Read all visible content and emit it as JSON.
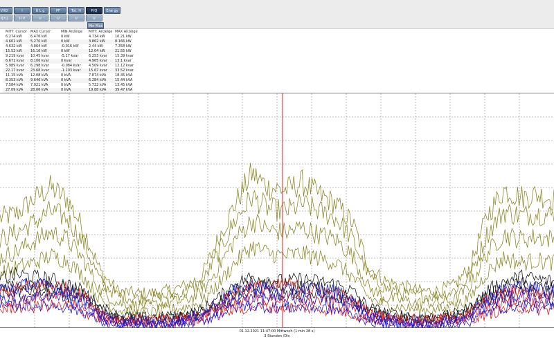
{
  "toolbar": {
    "row1": [
      "VHD",
      "I",
      "U L g",
      "PF",
      "Tot. H",
      "P/Q",
      "Ene gy"
    ],
    "row2": [
      "f[±]",
      "U V",
      "U",
      "U",
      "U",
      "U"
    ],
    "sub_button": "Min Max"
  },
  "table": {
    "headers": [
      "MITT. Cursor",
      "MAX Cursor",
      "MIN Anzeige",
      "MITT. Anzeige",
      "MAX Anzeige"
    ],
    "rows": [
      [
        "6.274 kW",
        "6.476 kW",
        "0 kW",
        "4.734 kW",
        "10.21 kW"
      ],
      [
        "4.601 kW",
        "5.270 kW",
        "0 kW",
        "3.862 kW",
        "8.166 kW"
      ],
      [
        "4.632 kW",
        "4.864 kW",
        "-0.016 kW",
        "2.44 kW",
        "7.358 kW"
      ],
      [
        "15.52 kW",
        "16.16 kW",
        "0 kW",
        "12.04 kW",
        "21.55 kW"
      ],
      [
        "9.219 kvar",
        "10.45 kvar",
        "-5.17 kvar",
        "6.253 kvar",
        "15.39 kvar"
      ],
      [
        "6.671 kvar",
        "8.106 kvar",
        "0 kvar",
        "4.965 kvar",
        "13.1 kvar"
      ],
      [
        "5.989 kvar",
        "6.298 kvar",
        "-0.084 kvar",
        "4.509 kvar",
        "12.12 kvar"
      ],
      [
        "22.17 kvar",
        "23.68 kvar",
        "-1.103 kvar",
        "15.67 kvar",
        "33.52 kvar"
      ],
      [
        "11.15 kVA",
        "12.08 kVA",
        "0 kVA",
        "7.874 kVA",
        "18.45 kVA"
      ],
      [
        "8.353 kVA",
        "9.646 kVA",
        "0 kVA",
        "6.284 kVA",
        "15.44 kVA"
      ],
      [
        "7.584 kVA",
        "7.921 kVA",
        "0 kVA",
        "5.722 kVA",
        "13.45 kVA"
      ],
      [
        "27.09 kVA",
        "28.66 kVA",
        "0 kVA",
        "19.88 kVA",
        "39.47 kVA"
      ]
    ]
  },
  "status": {
    "cursor_time": "01.12.2021 11:47:00 Mittwoch (1 min 28 s)",
    "zoom": "3 Stunden /Div"
  },
  "colors": {
    "olive": "#8c8a28",
    "black": "#1a1a1a",
    "red": "#e01818",
    "blue": "#1c1ce0",
    "cursor": "#e02020",
    "grid": "#888888",
    "active_button": "#1f3350"
  },
  "chart_data": {
    "type": "line",
    "title": "",
    "xlabel": "",
    "ylabel": "",
    "cursor_fraction": 0.51,
    "series": [
      {
        "color": "#8c8a28",
        "values": [
          0.47,
          0.49,
          0.55,
          0.6,
          0.55,
          0.42,
          0.24,
          0.16,
          0.15,
          0.15,
          0.16,
          0.18,
          0.22,
          0.38,
          0.53,
          0.66,
          0.6,
          0.59,
          0.62,
          0.57,
          0.53,
          0.45,
          0.26,
          0.2,
          0.18,
          0.16,
          0.16,
          0.18,
          0.26,
          0.48,
          0.59,
          0.56,
          0.57,
          0.55
        ]
      },
      {
        "color": "#8c8a28",
        "values": [
          0.38,
          0.41,
          0.45,
          0.5,
          0.47,
          0.36,
          0.2,
          0.14,
          0.13,
          0.13,
          0.14,
          0.15,
          0.19,
          0.32,
          0.46,
          0.56,
          0.51,
          0.5,
          0.53,
          0.5,
          0.47,
          0.38,
          0.22,
          0.17,
          0.15,
          0.14,
          0.14,
          0.16,
          0.22,
          0.4,
          0.5,
          0.48,
          0.49,
          0.48
        ]
      },
      {
        "color": "#8c8a28",
        "values": [
          0.3,
          0.33,
          0.37,
          0.41,
          0.38,
          0.29,
          0.16,
          0.11,
          0.1,
          0.1,
          0.11,
          0.12,
          0.15,
          0.26,
          0.38,
          0.46,
          0.42,
          0.41,
          0.43,
          0.4,
          0.38,
          0.31,
          0.17,
          0.13,
          0.12,
          0.11,
          0.11,
          0.12,
          0.18,
          0.32,
          0.4,
          0.38,
          0.39,
          0.38
        ]
      },
      {
        "color": "#8c8a28",
        "values": [
          0.24,
          0.26,
          0.28,
          0.31,
          0.29,
          0.22,
          0.12,
          0.08,
          0.07,
          0.07,
          0.08,
          0.09,
          0.11,
          0.19,
          0.28,
          0.35,
          0.32,
          0.31,
          0.32,
          0.3,
          0.28,
          0.22,
          0.13,
          0.1,
          0.09,
          0.08,
          0.08,
          0.09,
          0.13,
          0.24,
          0.3,
          0.28,
          0.29,
          0.28
        ]
      },
      {
        "color": "#1a1a1a",
        "values": [
          0.21,
          0.23,
          0.22,
          0.21,
          0.19,
          0.16,
          0.09,
          0.06,
          0.05,
          0.05,
          0.05,
          0.06,
          0.08,
          0.13,
          0.19,
          0.22,
          0.21,
          0.2,
          0.21,
          0.2,
          0.19,
          0.16,
          0.09,
          0.07,
          0.06,
          0.05,
          0.05,
          0.06,
          0.09,
          0.16,
          0.2,
          0.22,
          0.21,
          0.2
        ]
      },
      {
        "color": "#1a1a1a",
        "values": [
          0.18,
          0.19,
          0.19,
          0.18,
          0.17,
          0.14,
          0.08,
          0.05,
          0.04,
          0.04,
          0.05,
          0.05,
          0.07,
          0.11,
          0.16,
          0.19,
          0.18,
          0.17,
          0.18,
          0.17,
          0.16,
          0.13,
          0.08,
          0.06,
          0.05,
          0.04,
          0.04,
          0.05,
          0.08,
          0.14,
          0.17,
          0.19,
          0.18,
          0.17
        ]
      },
      {
        "color": "#1a1a1a",
        "values": [
          0.15,
          0.16,
          0.16,
          0.15,
          0.14,
          0.12,
          0.07,
          0.04,
          0.04,
          0.04,
          0.04,
          0.05,
          0.06,
          0.09,
          0.13,
          0.16,
          0.15,
          0.14,
          0.15,
          0.14,
          0.13,
          0.11,
          0.07,
          0.05,
          0.04,
          0.04,
          0.04,
          0.05,
          0.07,
          0.12,
          0.14,
          0.16,
          0.15,
          0.14
        ]
      },
      {
        "color": "#e01818",
        "values": [
          0.15,
          0.17,
          0.18,
          0.19,
          0.17,
          0.14,
          0.07,
          0.04,
          0.04,
          0.04,
          0.04,
          0.05,
          0.06,
          0.1,
          0.15,
          0.18,
          0.17,
          0.19,
          0.17,
          0.16,
          0.15,
          0.12,
          0.07,
          0.05,
          0.04,
          0.04,
          0.04,
          0.05,
          0.07,
          0.12,
          0.15,
          0.16,
          0.15,
          0.14
        ]
      },
      {
        "color": "#e01818",
        "values": [
          0.11,
          0.12,
          0.13,
          0.14,
          0.12,
          0.1,
          0.05,
          0.03,
          0.03,
          0.03,
          0.03,
          0.04,
          0.05,
          0.08,
          0.11,
          0.13,
          0.12,
          0.13,
          0.12,
          0.12,
          0.11,
          0.09,
          0.05,
          0.04,
          0.03,
          0.03,
          0.03,
          0.04,
          0.05,
          0.09,
          0.11,
          0.12,
          0.11,
          0.1
        ]
      },
      {
        "color": "#e01818",
        "values": [
          0.08,
          0.09,
          0.09,
          0.1,
          0.09,
          0.07,
          0.04,
          0.02,
          0.02,
          0.02,
          0.02,
          0.03,
          0.03,
          0.06,
          0.08,
          0.09,
          0.09,
          0.09,
          0.09,
          0.08,
          0.08,
          0.06,
          0.04,
          0.03,
          0.02,
          0.02,
          0.02,
          0.03,
          0.04,
          0.06,
          0.08,
          0.09,
          0.08,
          0.08
        ]
      },
      {
        "color": "#1c1ce0",
        "values": [
          0.17,
          0.18,
          0.19,
          0.18,
          0.16,
          0.13,
          0.06,
          0.03,
          0.03,
          0.03,
          0.03,
          0.04,
          0.06,
          0.11,
          0.16,
          0.18,
          0.17,
          0.16,
          0.17,
          0.17,
          0.16,
          0.12,
          0.06,
          0.04,
          0.03,
          0.03,
          0.03,
          0.04,
          0.06,
          0.13,
          0.17,
          0.18,
          0.17,
          0.16
        ]
      },
      {
        "color": "#1c1ce0",
        "values": [
          0.13,
          0.14,
          0.14,
          0.14,
          0.13,
          0.1,
          0.05,
          0.02,
          0.02,
          0.02,
          0.02,
          0.03,
          0.05,
          0.08,
          0.12,
          0.14,
          0.13,
          0.12,
          0.13,
          0.13,
          0.12,
          0.09,
          0.05,
          0.03,
          0.02,
          0.02,
          0.02,
          0.03,
          0.05,
          0.1,
          0.13,
          0.14,
          0.13,
          0.12
        ]
      },
      {
        "color": "#1c1ce0",
        "values": [
          0.09,
          0.1,
          0.1,
          0.1,
          0.09,
          0.07,
          0.03,
          0.01,
          0.01,
          0.01,
          0.01,
          0.02,
          0.03,
          0.06,
          0.09,
          0.1,
          0.09,
          0.09,
          0.09,
          0.09,
          0.08,
          0.06,
          0.03,
          0.02,
          0.01,
          0.01,
          0.01,
          0.02,
          0.03,
          0.07,
          0.09,
          0.1,
          0.09,
          0.09
        ]
      }
    ]
  }
}
